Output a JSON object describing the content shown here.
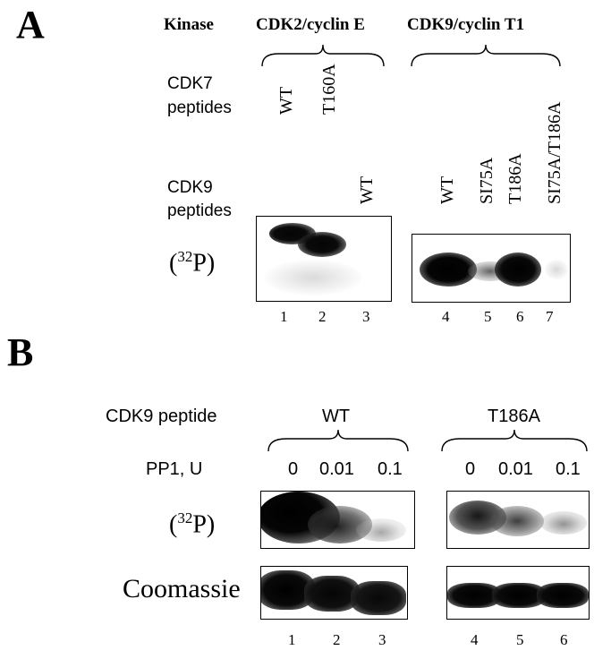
{
  "panelA": {
    "letter": "A",
    "kinase_label": "Kinase",
    "kinase1": "CDK2/cyclin E",
    "kinase2": "CDK9/cyclin T1",
    "cdk7_line1": "CDK7",
    "cdk7_line2": "peptides",
    "cdk7_peptides": [
      "WT",
      "T160A"
    ],
    "cdk9_line1": "CDK9",
    "cdk9_line2": "peptides",
    "cdk9_peptides": [
      "WT",
      "WT",
      "SI75A",
      "T186A",
      "SI75A/T186A"
    ],
    "p32_open": "(",
    "p32_sup": "32",
    "p32_close": "P)",
    "lanes": [
      "1",
      "2",
      "3",
      "4",
      "5",
      "6",
      "7"
    ]
  },
  "panelB": {
    "letter": "B",
    "peptide_label": "CDK9 peptide",
    "group1": "WT",
    "group2": "T186A",
    "pp1_label": "PP1, U",
    "pp1_doses": [
      "0",
      "0.01",
      "0.1",
      "0",
      "0.01",
      "0.1"
    ],
    "p32_open": "(",
    "p32_sup": "32",
    "p32_close": "P)",
    "coomassie_label": "Coomassie",
    "lanes": [
      "1",
      "2",
      "3",
      "4",
      "5",
      "6"
    ]
  }
}
